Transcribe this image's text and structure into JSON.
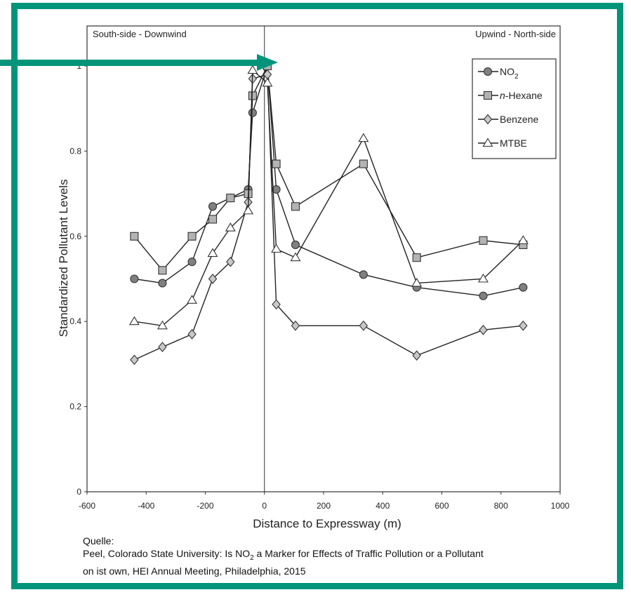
{
  "chart_data": {
    "type": "line",
    "xlabel": "Distance to Expressway (m)",
    "ylabel": "Standardized Pollutant Levels",
    "xlim": [
      -600,
      1000
    ],
    "ylim": [
      0,
      1.05
    ],
    "xticks": [
      -600,
      -400,
      -200,
      0,
      200,
      400,
      600,
      800,
      1000
    ],
    "xtick_labels": [
      "-600",
      "-400",
      "-200",
      "0",
      "200",
      "400",
      "600",
      "800",
      "1000"
    ],
    "yticks": [
      0,
      0.2,
      0.4,
      0.6,
      0.8,
      1
    ],
    "ytick_labels": [
      "0",
      "0.2",
      "0.4",
      "0.6",
      "0.8",
      "1"
    ],
    "annotations": {
      "left": "South-side - Downwind",
      "right": "Upwind - North-side"
    },
    "vertical_line_x": 0,
    "legend": "top-right",
    "series": [
      {
        "name": "NO",
        "name_sub": "2",
        "marker": "circle",
        "marker_fill": "#808080",
        "points": [
          [
            -440,
            0.5
          ],
          [
            -345,
            0.49
          ],
          [
            -245,
            0.54
          ],
          [
            -175,
            0.67
          ],
          [
            -115,
            0.69
          ],
          [
            -55,
            0.71
          ],
          [
            -40,
            0.89
          ],
          [
            10,
            1.0
          ],
          [
            40,
            0.71
          ],
          [
            105,
            0.58
          ],
          [
            335,
            0.51
          ],
          [
            515,
            0.48
          ],
          [
            740,
            0.46
          ],
          [
            875,
            0.48
          ]
        ]
      },
      {
        "name": "n-Hexane",
        "marker": "square",
        "marker_fill": "#b3b3b3",
        "points": [
          [
            -440,
            0.6
          ],
          [
            -345,
            0.52
          ],
          [
            -245,
            0.6
          ],
          [
            -175,
            0.64
          ],
          [
            -115,
            0.69
          ],
          [
            -55,
            0.7
          ],
          [
            -40,
            0.93
          ],
          [
            10,
            1.0
          ],
          [
            40,
            0.77
          ],
          [
            105,
            0.67
          ],
          [
            335,
            0.77
          ],
          [
            515,
            0.55
          ],
          [
            740,
            0.59
          ],
          [
            875,
            0.58
          ]
        ]
      },
      {
        "name": "Benzene",
        "marker": "diamond",
        "marker_fill": "#c8c8c8",
        "points": [
          [
            -440,
            0.31
          ],
          [
            -345,
            0.34
          ],
          [
            -245,
            0.37
          ],
          [
            -175,
            0.5
          ],
          [
            -115,
            0.54
          ],
          [
            -55,
            0.68
          ],
          [
            -40,
            0.97
          ],
          [
            10,
            0.98
          ],
          [
            40,
            0.44
          ],
          [
            105,
            0.39
          ],
          [
            335,
            0.39
          ],
          [
            515,
            0.32
          ],
          [
            740,
            0.38
          ],
          [
            875,
            0.39
          ]
        ]
      },
      {
        "name": "MTBE",
        "marker": "triangle",
        "marker_fill": "#ffffff",
        "points": [
          [
            -440,
            0.4
          ],
          [
            -345,
            0.39
          ],
          [
            -245,
            0.45
          ],
          [
            -175,
            0.56
          ],
          [
            -115,
            0.62
          ],
          [
            -55,
            0.66
          ],
          [
            -40,
            0.99
          ],
          [
            10,
            0.96
          ],
          [
            40,
            0.57
          ],
          [
            105,
            0.55
          ],
          [
            335,
            0.83
          ],
          [
            515,
            0.49
          ],
          [
            740,
            0.5
          ],
          [
            875,
            0.59
          ]
        ]
      }
    ]
  },
  "source": {
    "label": "Quelle:",
    "line1_a": "Peel, Colorado State University: Is NO",
    "line1_sub": "2",
    "line1_b": " a Marker for Effects of Traffic Pollution or a Pollutant",
    "line2": "on ist own, HEI Annual Meeting, Philadelphia, 2015"
  },
  "colors": {
    "frame": "#00957a",
    "marker_stroke": "#333333"
  }
}
